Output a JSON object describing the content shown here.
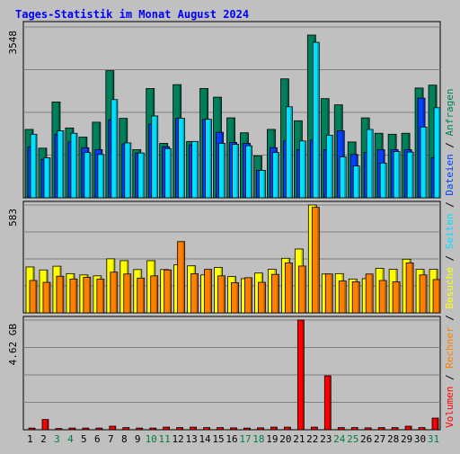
{
  "chart_data": {
    "type": "bar",
    "title": "Tages-Statistik im Monat August 2024",
    "categories": [
      "1",
      "2",
      "3",
      "4",
      "5",
      "6",
      "7",
      "8",
      "9",
      "10",
      "11",
      "12",
      "13",
      "14",
      "15",
      "16",
      "17",
      "18",
      "19",
      "20",
      "21",
      "22",
      "23",
      "24",
      "25",
      "26",
      "27",
      "28",
      "29",
      "30",
      "31"
    ],
    "weekend_days": [
      "3",
      "4",
      "10",
      "11",
      "17",
      "18",
      "24",
      "25",
      "31"
    ],
    "colors": {
      "background": "#c0c0c0",
      "plot": "#c0c0c0",
      "frame": "#000000",
      "title": "#0000ff",
      "anfragen": "#00805a",
      "dateien": "#0040ff",
      "seiten": "#00e0ff",
      "besuche": "#ffff00",
      "rechner": "#ff8000",
      "volumen": "#ff0000",
      "weekday_label": "#000000",
      "weekend_label": "#008040"
    },
    "panels": [
      {
        "id": "top",
        "y_max": 3548,
        "y_tick_label": "3548",
        "series": [
          {
            "name": "Anfragen",
            "key": "anfragen",
            "values": [
              1420,
              1030,
              1990,
              1450,
              1260,
              1570,
              2640,
              1650,
              1000,
              2270,
              1130,
              2350,
              1170,
              2270,
              2090,
              1660,
              1350,
              870,
              1420,
              2470,
              1600,
              3380,
              2060,
              1930,
              1160,
              1660,
              1340,
              1320,
              1340,
              2280,
              2340
            ]
          },
          {
            "name": "Dateien",
            "key": "dateien",
            "values": [
              1060,
              800,
              1320,
              1160,
              1040,
              1000,
              1620,
              1120,
              930,
              1530,
              1060,
              1650,
              1100,
              1630,
              1360,
              1150,
              1130,
              570,
              1040,
              1180,
              1000,
              1200,
              1000,
              1390,
              900,
              940,
              1000,
              1000,
              1000,
              2070,
              830
            ]
          },
          {
            "name": "Seiten",
            "key": "seiten",
            "values": [
              1320,
              830,
              1390,
              1340,
              940,
              900,
              2040,
              1140,
              930,
              1700,
              1020,
              1650,
              1170,
              1630,
              1130,
              1110,
              1080,
              570,
              940,
              1890,
              1180,
              3230,
              1300,
              850,
              660,
              1420,
              720,
              960,
              950,
              1470,
              1870
            ]
          }
        ]
      },
      {
        "id": "middle",
        "y_max": 583,
        "y_tick_label": "583",
        "series": [
          {
            "name": "Besuche",
            "key": "besuche",
            "values": [
              248,
              232,
              252,
              212,
              205,
              200,
              292,
              282,
              234,
              282,
              234,
              260,
              254,
              205,
              245,
              196,
              185,
              215,
              235,
              295,
              345,
              583,
              210,
              212,
              183,
              185,
              240,
              235,
              290,
              235,
              235
            ]
          },
          {
            "name": "Rechner",
            "key": "rechner",
            "values": [
              175,
              165,
              198,
              183,
              192,
              182,
              220,
              210,
              188,
              200,
              232,
              385,
              212,
              235,
              200,
              163,
              190,
              165,
              208,
              270,
              253,
              570,
              210,
              172,
              168,
              210,
              175,
              168,
              270,
              205,
              180
            ]
          }
        ]
      },
      {
        "id": "bottom",
        "y_max": 4.62,
        "y_tick_label": "4.62 GB",
        "series": [
          {
            "name": "Volumen",
            "key": "volumen",
            "values": [
              0.07,
              0.43,
              0.05,
              0.07,
              0.07,
              0.07,
              0.15,
              0.09,
              0.07,
              0.07,
              0.11,
              0.09,
              0.11,
              0.09,
              0.09,
              0.08,
              0.07,
              0.08,
              0.11,
              0.11,
              4.62,
              0.11,
              2.27,
              0.09,
              0.09,
              0.08,
              0.09,
              0.09,
              0.15,
              0.09,
              0.49
            ]
          }
        ]
      }
    ],
    "side_legend": [
      {
        "text": "Volumen",
        "key": "volumen"
      },
      {
        "text": "/",
        "key": "frame"
      },
      {
        "text": "Rechner",
        "key": "rechner"
      },
      {
        "text": "/",
        "key": "frame"
      },
      {
        "text": "Besuche",
        "key": "besuche"
      },
      {
        "text": "/",
        "key": "frame"
      },
      {
        "text": "Seiten",
        "key": "seiten"
      },
      {
        "text": "/",
        "key": "frame"
      },
      {
        "text": "Dateien",
        "key": "dateien"
      },
      {
        "text": "/",
        "key": "frame"
      },
      {
        "text": "Anfragen",
        "key": "anfragen"
      }
    ]
  }
}
